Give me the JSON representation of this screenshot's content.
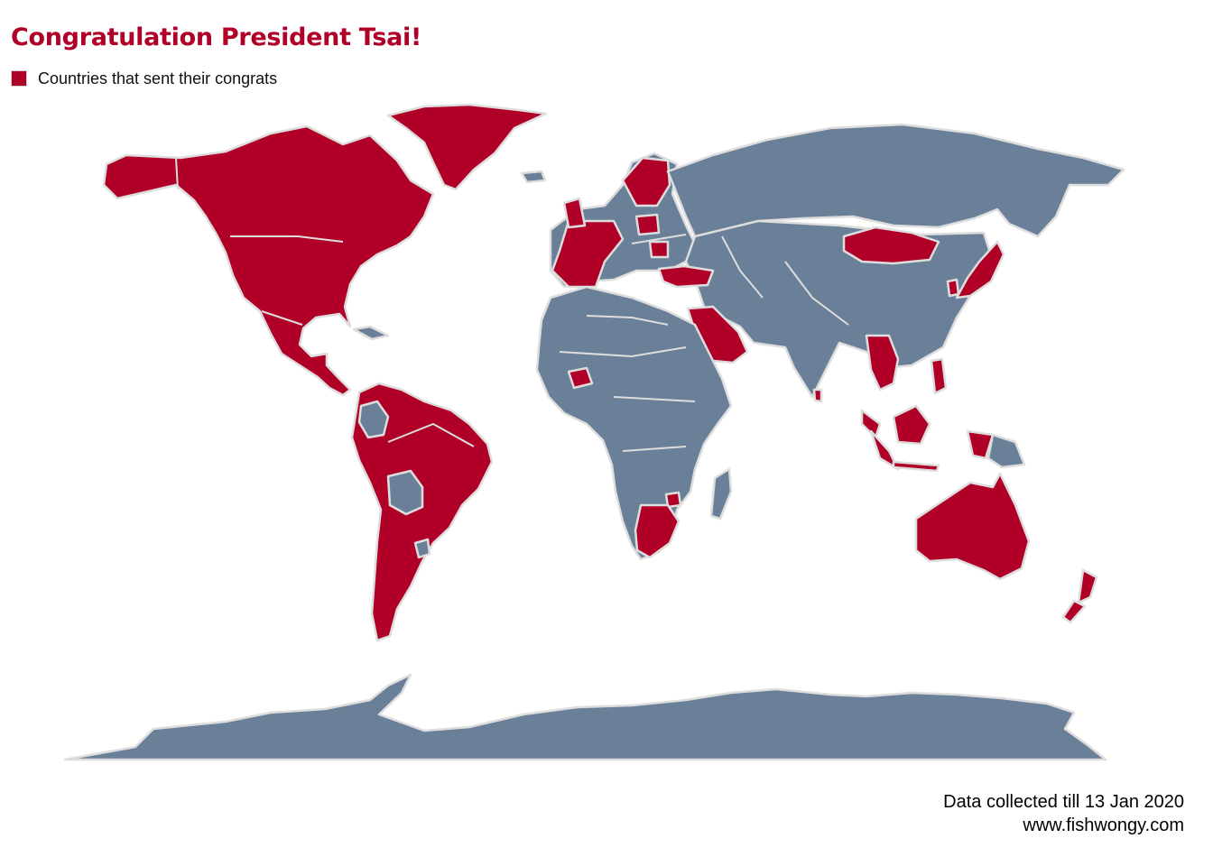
{
  "title": "Congratulation President Tsai!",
  "legend": {
    "label": "Countries that sent their congrats"
  },
  "caption": {
    "line1": "Data collected till 13 Jan 2020",
    "line2": "www.fishwongy.com"
  },
  "colors": {
    "congrats": "#b00028",
    "other": "#6a7f98",
    "border": "#dddddd",
    "title": "#b00028",
    "background": "#ffffff"
  }
}
